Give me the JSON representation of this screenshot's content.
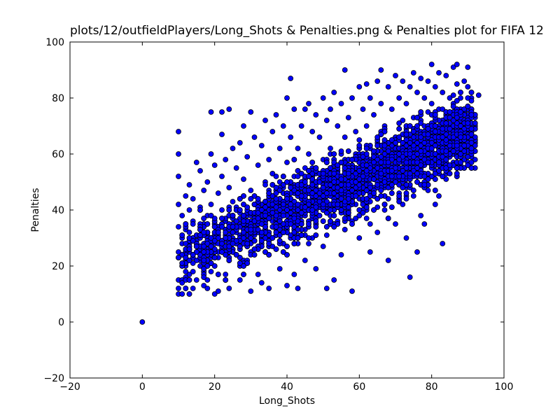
{
  "chart_data": {
    "type": "scatter",
    "title": "plots/12/outfieldPlayers/Long_Shots & Penalties.png & Penalties plot for FIFA 12",
    "xlabel": "Long_Shots",
    "ylabel": "Penalties",
    "xlim": [
      -20,
      100
    ],
    "ylim": [
      -20,
      100
    ],
    "xticks": [
      -20,
      0,
      20,
      40,
      60,
      80,
      100
    ],
    "yticks": [
      -20,
      0,
      20,
      40,
      60,
      80,
      100
    ],
    "xtick_labels": [
      "−20",
      "0",
      "20",
      "40",
      "60",
      "80",
      "100"
    ],
    "ytick_labels": [
      "−20",
      "0",
      "20",
      "40",
      "60",
      "80",
      "100"
    ],
    "grid": false,
    "marker_color": "#0000ff",
    "marker_edge_color": "#000000",
    "points": [
      [
        0,
        0
      ],
      [
        10,
        68
      ],
      [
        10,
        60
      ],
      [
        10,
        52
      ],
      [
        10,
        42
      ],
      [
        10,
        34
      ],
      [
        10,
        25
      ],
      [
        10,
        15
      ],
      [
        10,
        12
      ],
      [
        10,
        10
      ],
      [
        11,
        10
      ],
      [
        11,
        20
      ],
      [
        11,
        30
      ],
      [
        11,
        38
      ],
      [
        12,
        45
      ],
      [
        12,
        33
      ],
      [
        12,
        22
      ],
      [
        12,
        16
      ],
      [
        13,
        28
      ],
      [
        13,
        40
      ],
      [
        13,
        49
      ],
      [
        13,
        17
      ],
      [
        14,
        12
      ],
      [
        14,
        36
      ],
      [
        14,
        44
      ],
      [
        15,
        57
      ],
      [
        15,
        25
      ],
      [
        15,
        15
      ],
      [
        16,
        54
      ],
      [
        16,
        41
      ],
      [
        16,
        30
      ],
      [
        16,
        20
      ],
      [
        17,
        47
      ],
      [
        17,
        35
      ],
      [
        17,
        13
      ],
      [
        18,
        25
      ],
      [
        18,
        38
      ],
      [
        18,
        50
      ],
      [
        18,
        12
      ],
      [
        19,
        75
      ],
      [
        19,
        60
      ],
      [
        19,
        42
      ],
      [
        19,
        30
      ],
      [
        19,
        18
      ],
      [
        20,
        56
      ],
      [
        20,
        10
      ],
      [
        20,
        36
      ],
      [
        21,
        11
      ],
      [
        21,
        46
      ],
      [
        21,
        23
      ],
      [
        22,
        67
      ],
      [
        22,
        75
      ],
      [
        22,
        52
      ],
      [
        22,
        40
      ],
      [
        23,
        31
      ],
      [
        23,
        58
      ],
      [
        23,
        17
      ],
      [
        24,
        76
      ],
      [
        24,
        48
      ],
      [
        24,
        12
      ],
      [
        25,
        62
      ],
      [
        25,
        37
      ],
      [
        26,
        55
      ],
      [
        26,
        28
      ],
      [
        27,
        64
      ],
      [
        27,
        44
      ],
      [
        27,
        15
      ],
      [
        28,
        70
      ],
      [
        28,
        51
      ],
      [
        28,
        22
      ],
      [
        29,
        59
      ],
      [
        29,
        38
      ],
      [
        30,
        75
      ],
      [
        30,
        11
      ],
      [
        30,
        47
      ],
      [
        31,
        66
      ],
      [
        31,
        29
      ],
      [
        32,
        56
      ],
      [
        32,
        17
      ],
      [
        33,
        63
      ],
      [
        33,
        42
      ],
      [
        33,
        14
      ],
      [
        34,
        72
      ],
      [
        34,
        50
      ],
      [
        34,
        33
      ],
      [
        35,
        58
      ],
      [
        35,
        24
      ],
      [
        35,
        12
      ],
      [
        36,
        68
      ],
      [
        36,
        45
      ],
      [
        36,
        30
      ],
      [
        37,
        74
      ],
      [
        37,
        52
      ],
      [
        38,
        62
      ],
      [
        38,
        36
      ],
      [
        38,
        19
      ],
      [
        39,
        70
      ],
      [
        39,
        48
      ],
      [
        39,
        25
      ],
      [
        40,
        80
      ],
      [
        40,
        57
      ],
      [
        40,
        40
      ],
      [
        40,
        13
      ],
      [
        41,
        87
      ],
      [
        41,
        66
      ],
      [
        41,
        30
      ],
      [
        42,
        76
      ],
      [
        42,
        52
      ],
      [
        42,
        17
      ],
      [
        43,
        62
      ],
      [
        43,
        45
      ],
      [
        43,
        12
      ],
      [
        44,
        70
      ],
      [
        44,
        35
      ],
      [
        45,
        76
      ],
      [
        45,
        55
      ],
      [
        45,
        22
      ],
      [
        46,
        78
      ],
      [
        46,
        60
      ],
      [
        46,
        40
      ],
      [
        47,
        68
      ],
      [
        47,
        30
      ],
      [
        48,
        74
      ],
      [
        48,
        53
      ],
      [
        48,
        19
      ],
      [
        49,
        66
      ],
      [
        49,
        42
      ],
      [
        50,
        80
      ],
      [
        50,
        58
      ],
      [
        50,
        27
      ],
      [
        51,
        72
      ],
      [
        51,
        48
      ],
      [
        51,
        12
      ],
      [
        52,
        76
      ],
      [
        52,
        62
      ],
      [
        52,
        36
      ],
      [
        53,
        82
      ],
      [
        53,
        54
      ],
      [
        53,
        15
      ],
      [
        54,
        70
      ],
      [
        54,
        44
      ],
      [
        55,
        78
      ],
      [
        55,
        60
      ],
      [
        55,
        24
      ],
      [
        56,
        90
      ],
      [
        56,
        66
      ],
      [
        56,
        50
      ],
      [
        57,
        73
      ],
      [
        57,
        38
      ],
      [
        58,
        80
      ],
      [
        58,
        55
      ],
      [
        58,
        11
      ],
      [
        59,
        68
      ],
      [
        59,
        45
      ],
      [
        60,
        84
      ],
      [
        60,
        62
      ],
      [
        60,
        30
      ],
      [
        61,
        76
      ],
      [
        61,
        52
      ],
      [
        62,
        85
      ],
      [
        62,
        70
      ],
      [
        62,
        37
      ],
      [
        63,
        80
      ],
      [
        63,
        58
      ],
      [
        63,
        25
      ],
      [
        64,
        74
      ],
      [
        64,
        48
      ],
      [
        65,
        86
      ],
      [
        65,
        64
      ],
      [
        65,
        32
      ],
      [
        66,
        90
      ],
      [
        66,
        78
      ],
      [
        66,
        55
      ],
      [
        67,
        70
      ],
      [
        67,
        40
      ],
      [
        68,
        84
      ],
      [
        68,
        60
      ],
      [
        68,
        22
      ],
      [
        69,
        76
      ],
      [
        69,
        50
      ],
      [
        70,
        88
      ],
      [
        70,
        66
      ],
      [
        70,
        35
      ],
      [
        71,
        80
      ],
      [
        71,
        57
      ],
      [
        72,
        86
      ],
      [
        72,
        72
      ],
      [
        72,
        42
      ],
      [
        73,
        78
      ],
      [
        73,
        62
      ],
      [
        73,
        30
      ],
      [
        74,
        84
      ],
      [
        74,
        55
      ],
      [
        74,
        16
      ],
      [
        75,
        89
      ],
      [
        75,
        68
      ],
      [
        75,
        45
      ],
      [
        76,
        82
      ],
      [
        76,
        60
      ],
      [
        76,
        25
      ],
      [
        77,
        87
      ],
      [
        77,
        72
      ],
      [
        77,
        38
      ],
      [
        78,
        80
      ],
      [
        78,
        64
      ],
      [
        78,
        35
      ],
      [
        79,
        86
      ],
      [
        79,
        75
      ],
      [
        79,
        52
      ],
      [
        80,
        92
      ],
      [
        80,
        78
      ],
      [
        80,
        58
      ],
      [
        81,
        84
      ],
      [
        81,
        70
      ],
      [
        81,
        42
      ],
      [
        82,
        89
      ],
      [
        82,
        76
      ],
      [
        82,
        45
      ],
      [
        83,
        82
      ],
      [
        83,
        66
      ],
      [
        83,
        28
      ],
      [
        84,
        88
      ],
      [
        84,
        74
      ],
      [
        85,
        80
      ],
      [
        85,
        69
      ],
      [
        86,
        91
      ],
      [
        86,
        78
      ],
      [
        87,
        92
      ],
      [
        87,
        85
      ],
      [
        88,
        80
      ],
      [
        88,
        73
      ],
      [
        89,
        86
      ],
      [
        89,
        76
      ],
      [
        90,
        91
      ],
      [
        90,
        84
      ],
      [
        91,
        80
      ],
      [
        93,
        81
      ]
    ]
  }
}
